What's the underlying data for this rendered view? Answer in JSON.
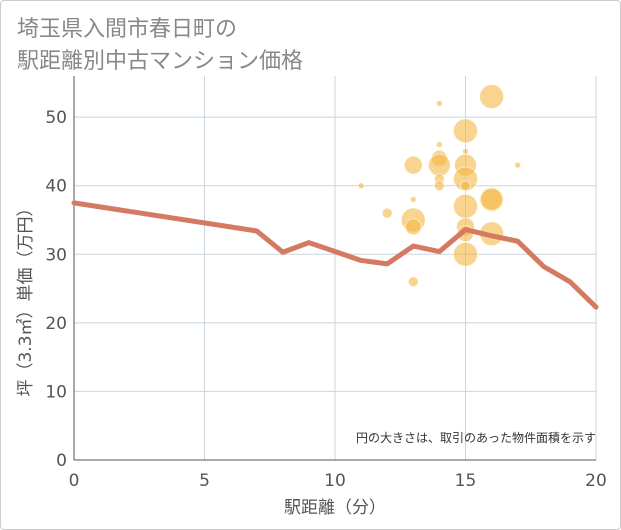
{
  "title": {
    "line1": "埼玉県入間市春日町の",
    "line2": "駅距離別中古マンション価格"
  },
  "colors": {
    "bubble": "#f3b743",
    "line": "#d47a63",
    "grid": "#cbd5dd",
    "axis": "#555555"
  },
  "chart_data": {
    "type": "scatter",
    "xlabel": "駅距離（分）",
    "ylabel": "坪（3.3㎡）単価（万円）",
    "xlim": [
      0,
      20
    ],
    "ylim": [
      0,
      56
    ],
    "x_ticks": [
      0,
      5,
      10,
      15,
      20
    ],
    "y_ticks": [
      0,
      10,
      20,
      30,
      40,
      50
    ],
    "grid": true,
    "annotation": "円の大きさは、取引のあった物件面積を示す",
    "series": [
      {
        "type": "bubble",
        "points": [
          {
            "x": 11,
            "y": 40,
            "r": 3
          },
          {
            "x": 12,
            "y": 36,
            "r": 5
          },
          {
            "x": 13,
            "y": 43,
            "r": 9
          },
          {
            "x": 13,
            "y": 38,
            "r": 3
          },
          {
            "x": 13,
            "y": 35,
            "r": 12
          },
          {
            "x": 13,
            "y": 34,
            "r": 8
          },
          {
            "x": 13,
            "y": 26,
            "r": 5
          },
          {
            "x": 14,
            "y": 52,
            "r": 3
          },
          {
            "x": 14,
            "y": 46,
            "r": 3
          },
          {
            "x": 14,
            "y": 44,
            "r": 8
          },
          {
            "x": 14,
            "y": 43,
            "r": 11
          },
          {
            "x": 14,
            "y": 41,
            "r": 5
          },
          {
            "x": 14,
            "y": 40,
            "r": 5
          },
          {
            "x": 15,
            "y": 48,
            "r": 12
          },
          {
            "x": 15,
            "y": 45,
            "r": 3
          },
          {
            "x": 15,
            "y": 43,
            "r": 11
          },
          {
            "x": 15,
            "y": 41,
            "r": 12
          },
          {
            "x": 15,
            "y": 40,
            "r": 5
          },
          {
            "x": 15,
            "y": 37,
            "r": 12
          },
          {
            "x": 15,
            "y": 34,
            "r": 9
          },
          {
            "x": 15,
            "y": 33,
            "r": 8
          },
          {
            "x": 15,
            "y": 30,
            "r": 12
          },
          {
            "x": 16,
            "y": 53,
            "r": 12
          },
          {
            "x": 16,
            "y": 38,
            "r": 12
          },
          {
            "x": 16,
            "y": 38,
            "r": 11
          },
          {
            "x": 16,
            "y": 33,
            "r": 12
          },
          {
            "x": 17,
            "y": 43,
            "r": 3
          }
        ]
      },
      {
        "type": "line",
        "points": [
          {
            "x": 0,
            "y": 37.5
          },
          {
            "x": 7,
            "y": 33.4
          },
          {
            "x": 8,
            "y": 30.3
          },
          {
            "x": 9,
            "y": 31.7
          },
          {
            "x": 10,
            "y": 30.4
          },
          {
            "x": 11,
            "y": 29.1
          },
          {
            "x": 12,
            "y": 28.6
          },
          {
            "x": 13,
            "y": 31.2
          },
          {
            "x": 14,
            "y": 30.4
          },
          {
            "x": 15,
            "y": 33.6
          },
          {
            "x": 16,
            "y": 32.7
          },
          {
            "x": 17,
            "y": 31.9
          },
          {
            "x": 18,
            "y": 28.2
          },
          {
            "x": 19,
            "y": 26.0
          },
          {
            "x": 20,
            "y": 22.3
          }
        ]
      }
    ]
  }
}
